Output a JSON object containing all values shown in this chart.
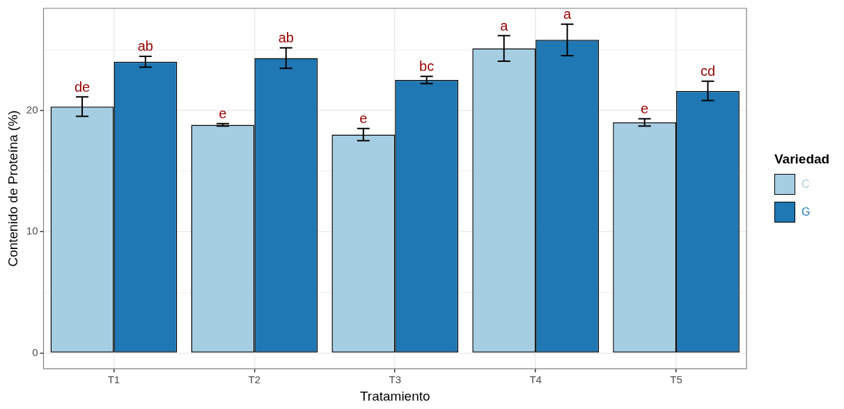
{
  "chart_data": {
    "type": "bar",
    "xlabel": "Tratamiento",
    "ylabel": "Contenido de Proteína (%)",
    "legend_title": "Variedad",
    "categories": [
      "T1",
      "T2",
      "T3",
      "T4",
      "T5"
    ],
    "series": [
      {
        "name": "C",
        "color": "#a6cee3",
        "values": [
          20.3,
          18.8,
          18.0,
          25.1,
          19.0
        ],
        "errors": [
          0.8,
          0.1,
          0.5,
          1.05,
          0.3
        ],
        "value_labels": [
          "de",
          "e",
          "e",
          "a",
          "e"
        ]
      },
      {
        "name": "G",
        "color": "#1f78b4",
        "values": [
          24.0,
          24.3,
          22.5,
          25.8,
          21.6
        ],
        "errors": [
          0.45,
          0.85,
          0.3,
          1.3,
          0.8
        ],
        "value_labels": [
          "ab",
          "ab",
          "bc",
          "a",
          "cd"
        ]
      }
    ],
    "ylim": [
      -1.3,
      28.4
    ],
    "yticks": [
      0,
      {
        "value": 5,
        "label": null
      },
      10,
      {
        "value": 15,
        "label": null
      },
      20,
      {
        "value": 25,
        "label": null
      }
    ],
    "grid": true,
    "legend": "right"
  }
}
